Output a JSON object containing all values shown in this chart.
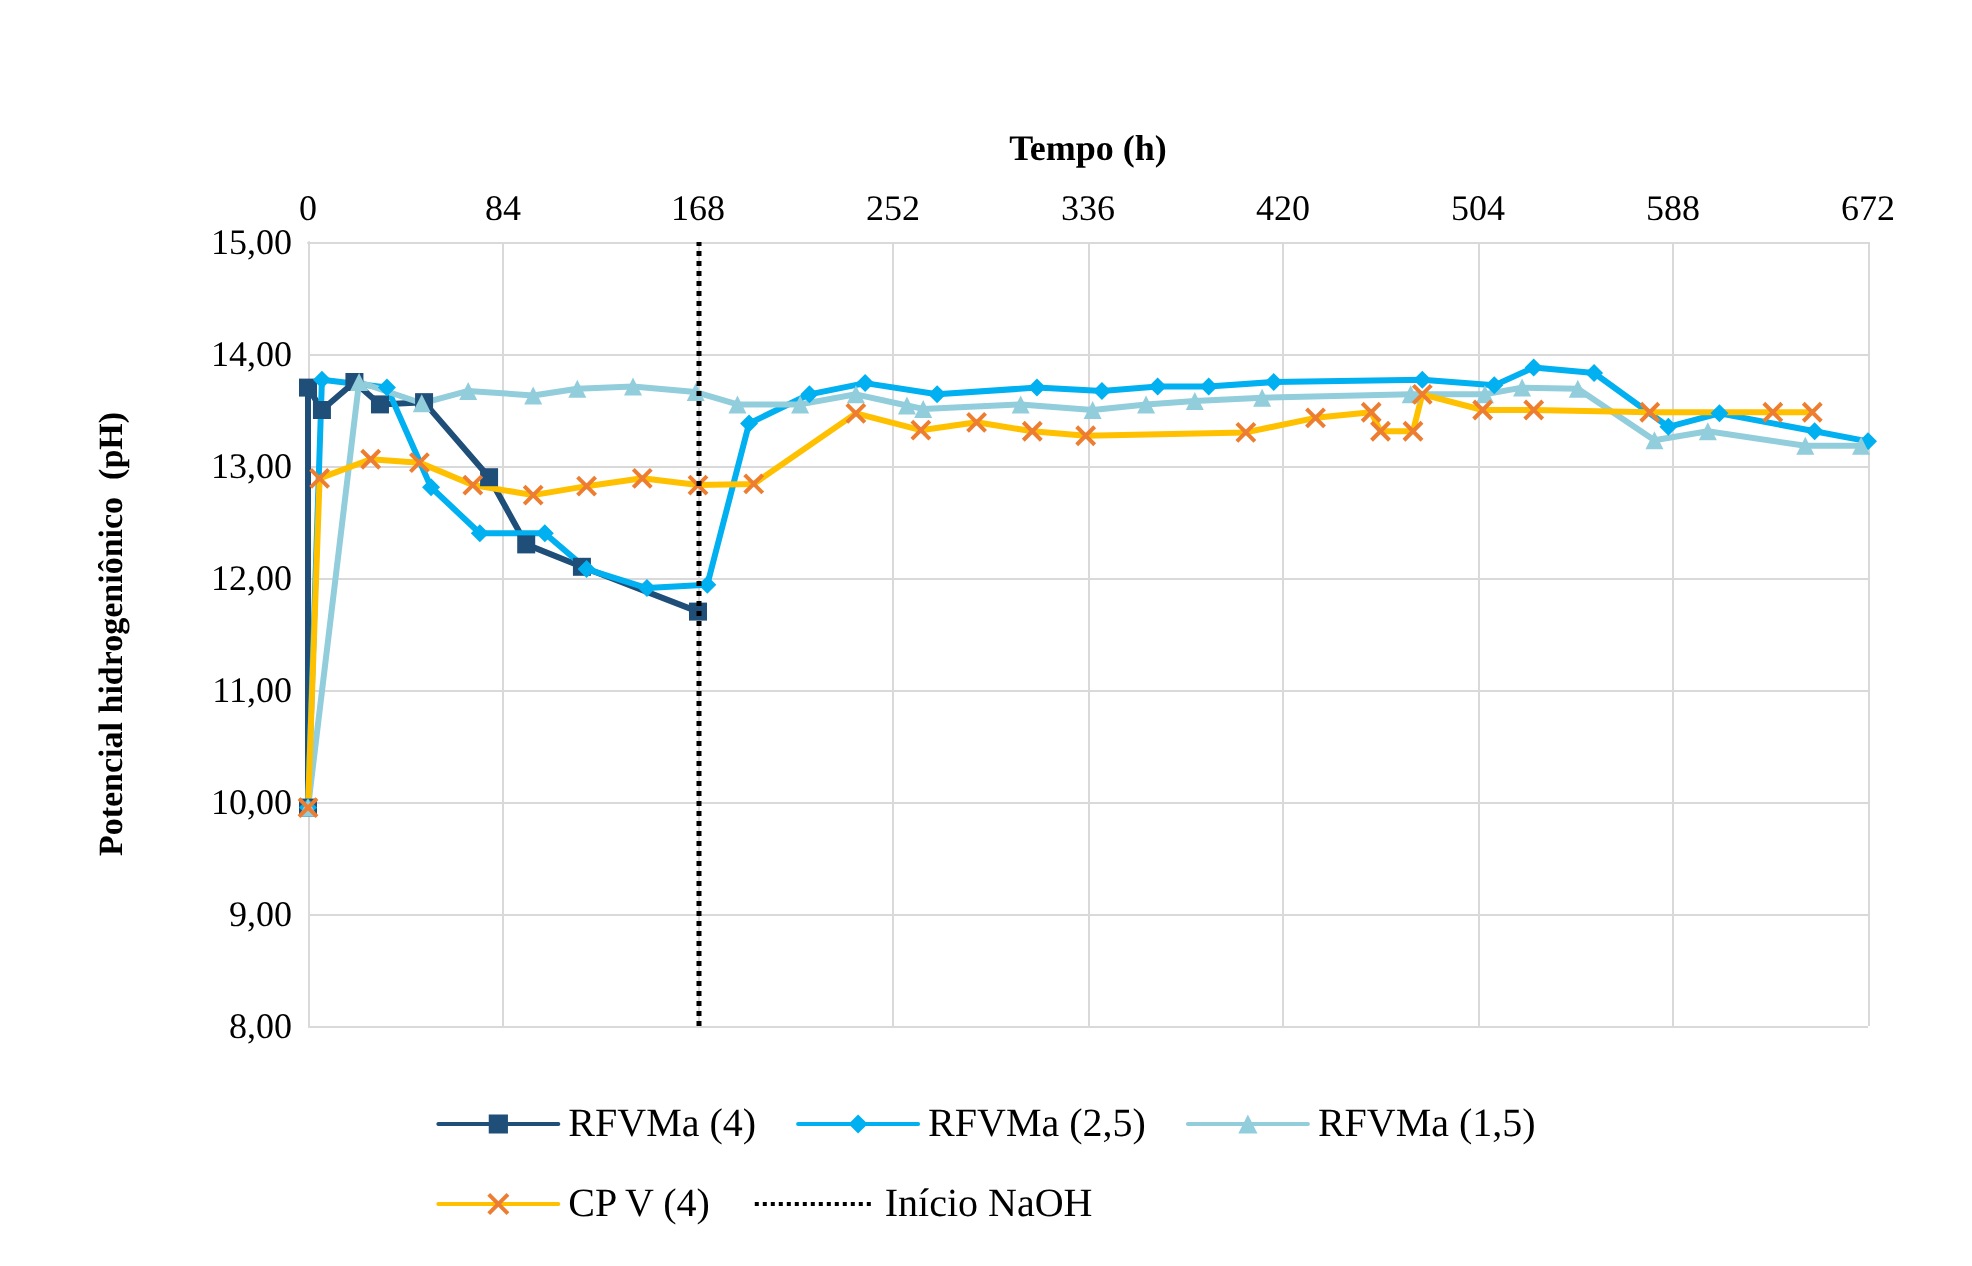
{
  "chart_data": {
    "type": "line",
    "xlabel": "Tempo (h)",
    "ylabel": "Potencial hidrogeniônico  (pH)",
    "xlim": [
      0,
      672
    ],
    "xticks": [
      0,
      84,
      168,
      252,
      336,
      420,
      504,
      588,
      672
    ],
    "ylim": [
      8,
      15
    ],
    "yticks": [
      {
        "value": 8,
        "label": "8,00"
      },
      {
        "value": 9,
        "label": "9,00"
      },
      {
        "value": 10,
        "label": "10,00"
      },
      {
        "value": 11,
        "label": "11,00"
      },
      {
        "value": 12,
        "label": "12,00"
      },
      {
        "value": 13,
        "label": "13,00"
      },
      {
        "value": 14,
        "label": "14,00"
      },
      {
        "value": 15,
        "label": "15,00"
      }
    ],
    "grid": true,
    "legend": "bottom",
    "line_style": "solid",
    "series": [
      {
        "name": "RFVMa (4)",
        "color": "#1f4e79",
        "marker": "square",
        "x": [
          0,
          0,
          6,
          20,
          31,
          50,
          78,
          94,
          118,
          168
        ],
        "values": [
          9.95,
          13.7,
          13.5,
          13.75,
          13.55,
          13.57,
          12.9,
          12.3,
          12.1,
          11.7
        ]
      },
      {
        "name": "RFVMa (2,5)",
        "color": "#00b0f0",
        "marker": "diamond",
        "x": [
          0,
          6,
          34,
          53,
          74,
          102,
          120,
          146,
          172,
          190,
          216,
          240,
          271,
          314,
          342,
          366,
          388,
          416,
          480,
          511,
          528,
          554,
          586,
          608,
          649,
          672
        ],
        "values": [
          9.95,
          13.77,
          13.7,
          12.81,
          12.4,
          12.4,
          12.08,
          11.91,
          11.94,
          13.38,
          13.64,
          13.74,
          13.64,
          13.7,
          13.67,
          13.71,
          13.71,
          13.75,
          13.77,
          13.72,
          13.88,
          13.83,
          13.35,
          13.47,
          13.31,
          13.22
        ]
      },
      {
        "name": "RFVMa (1,5)",
        "color": "#92cddc",
        "marker": "triangle",
        "x": [
          0,
          22,
          49,
          69,
          97,
          116,
          140,
          167,
          185,
          212,
          236,
          258,
          265,
          307,
          338,
          361,
          382,
          411,
          475,
          507,
          523,
          547,
          580,
          603,
          645,
          669
        ],
        "values": [
          9.95,
          13.75,
          13.56,
          13.67,
          13.63,
          13.69,
          13.71,
          13.66,
          13.55,
          13.55,
          13.64,
          13.54,
          13.51,
          13.55,
          13.5,
          13.55,
          13.58,
          13.61,
          13.64,
          13.64,
          13.7,
          13.69,
          13.23,
          13.31,
          13.18,
          13.18
        ]
      },
      {
        "name": "CP V (4)",
        "color": "#ffc000",
        "marker": "cross",
        "x": [
          0,
          5,
          27,
          48,
          71,
          97,
          120,
          144,
          168,
          192,
          236,
          264,
          288,
          312,
          335,
          404,
          434,
          458,
          462,
          476,
          480,
          506,
          528,
          578,
          631,
          648
        ],
        "values": [
          9.95,
          12.89,
          13.06,
          13.03,
          12.83,
          12.74,
          12.82,
          12.89,
          12.83,
          12.84,
          13.47,
          13.32,
          13.39,
          13.31,
          13.27,
          13.3,
          13.43,
          13.48,
          13.31,
          13.31,
          13.64,
          13.5,
          13.5,
          13.48,
          13.48,
          13.48
        ]
      }
    ],
    "ref_lines": [
      {
        "axis": "x",
        "value": 168,
        "label": "Início NaOH",
        "color": "#000000",
        "line_style": "dotted"
      }
    ]
  }
}
